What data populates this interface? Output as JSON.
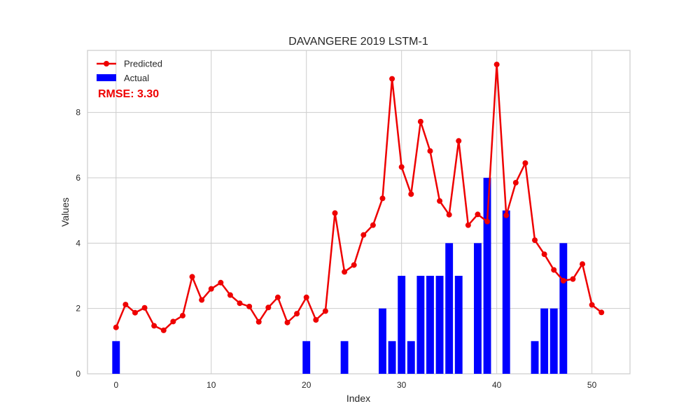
{
  "chart_data": {
    "type": "bar+line",
    "title": "DAVANGERE 2019 LSTM-1",
    "xlabel": "Index",
    "ylabel": "Values",
    "xlim": [
      -3,
      54
    ],
    "ylim": [
      0,
      9.9
    ],
    "xticks": [
      0,
      10,
      20,
      30,
      40,
      50
    ],
    "yticks": [
      0,
      2,
      4,
      6,
      8
    ],
    "grid": true,
    "legend_position": "top-left",
    "series": [
      {
        "name": "Predicted",
        "kind": "line",
        "color": "#ee0000",
        "x": [
          0,
          1,
          2,
          3,
          4,
          5,
          6,
          7,
          8,
          9,
          10,
          11,
          12,
          13,
          14,
          15,
          16,
          17,
          18,
          19,
          20,
          21,
          22,
          23,
          24,
          25,
          26,
          27,
          28,
          29,
          30,
          31,
          32,
          33,
          34,
          35,
          36,
          37,
          38,
          39,
          40,
          41,
          42,
          43,
          44,
          45,
          46,
          47,
          48,
          49,
          50,
          51
        ],
        "values": [
          1.42,
          2.12,
          1.87,
          2.02,
          1.47,
          1.33,
          1.6,
          1.78,
          2.97,
          2.26,
          2.6,
          2.79,
          2.41,
          2.16,
          2.06,
          1.59,
          2.03,
          2.34,
          1.57,
          1.84,
          2.34,
          1.65,
          1.92,
          4.92,
          3.12,
          3.33,
          4.25,
          4.55,
          5.37,
          9.03,
          6.33,
          5.5,
          7.72,
          6.82,
          5.29,
          4.87,
          7.13,
          4.55,
          4.88,
          4.66,
          9.47,
          4.85,
          5.85,
          6.45,
          4.09,
          3.66,
          3.18,
          2.85,
          2.9,
          3.36,
          2.11,
          1.88
        ]
      },
      {
        "name": "Actual",
        "kind": "bar",
        "color": "#0000ff",
        "x": [
          0,
          20,
          24,
          28,
          29,
          30,
          31,
          32,
          33,
          34,
          35,
          36,
          38,
          39,
          41,
          44,
          45,
          46,
          47
        ],
        "values": [
          1,
          1,
          1,
          2,
          1,
          3,
          1,
          3,
          3,
          3,
          4,
          3,
          4,
          6,
          5,
          1,
          2,
          2,
          4
        ]
      }
    ],
    "annotations": [
      {
        "text": "RMSE: 3.30",
        "color": "#ee0000"
      }
    ]
  }
}
